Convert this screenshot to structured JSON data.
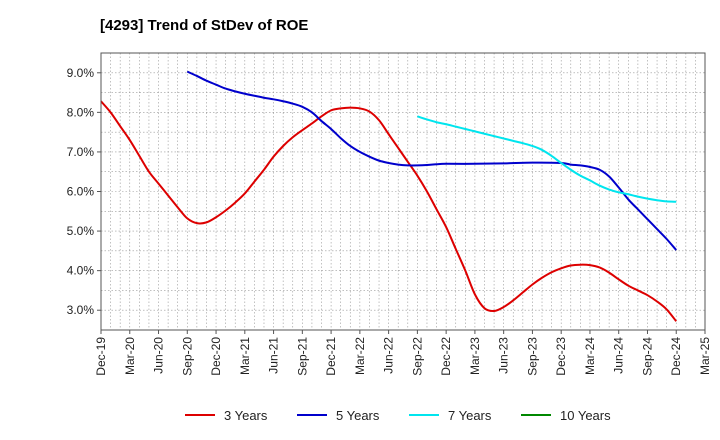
{
  "chart_data": {
    "type": "line",
    "title": "[4293]  Trend of StDev of ROE",
    "xlabel": "",
    "ylabel": "",
    "x_ticks": [
      "Dec-19",
      "Mar-20",
      "Jun-20",
      "Sep-20",
      "Dec-20",
      "Mar-21",
      "Jun-21",
      "Sep-21",
      "Dec-21",
      "Mar-22",
      "Jun-22",
      "Sep-22",
      "Dec-22",
      "Mar-23",
      "Jun-23",
      "Sep-23",
      "Dec-23",
      "Mar-24",
      "Jun-24",
      "Sep-24",
      "Dec-24",
      "Mar-25"
    ],
    "y_ticks": [
      3.0,
      4.0,
      5.0,
      6.0,
      7.0,
      8.0,
      9.0
    ],
    "y_tick_labels": [
      "3.0%",
      "4.0%",
      "5.0%",
      "6.0%",
      "7.0%",
      "8.0%",
      "9.0%"
    ],
    "ylim": [
      2.5,
      9.5
    ],
    "grid": true,
    "legend_position": "bottom",
    "series": [
      {
        "name": "3 Years",
        "color": "#dd0000",
        "points": [
          [
            "Dec-19",
            8.28
          ],
          [
            "Jan-20",
            8.0
          ],
          [
            "Feb-20",
            7.65
          ],
          [
            "Mar-20",
            7.3
          ],
          [
            "Apr-20",
            6.9
          ],
          [
            "May-20",
            6.5
          ],
          [
            "Jun-20",
            6.2
          ],
          [
            "Jul-20",
            5.9
          ],
          [
            "Aug-20",
            5.6
          ],
          [
            "Sep-20",
            5.32
          ],
          [
            "Oct-20",
            5.2
          ],
          [
            "Nov-20",
            5.22
          ],
          [
            "Dec-20",
            5.35
          ],
          [
            "Jan-21",
            5.52
          ],
          [
            "Feb-21",
            5.72
          ],
          [
            "Mar-21",
            5.95
          ],
          [
            "Apr-21",
            6.25
          ],
          [
            "May-21",
            6.55
          ],
          [
            "Jun-21",
            6.88
          ],
          [
            "Jul-21",
            7.15
          ],
          [
            "Aug-21",
            7.37
          ],
          [
            "Sep-21",
            7.55
          ],
          [
            "Oct-21",
            7.72
          ],
          [
            "Nov-21",
            7.9
          ],
          [
            "Dec-21",
            8.05
          ],
          [
            "Jan-22",
            8.1
          ],
          [
            "Feb-22",
            8.12
          ],
          [
            "Mar-22",
            8.1
          ],
          [
            "Apr-22",
            8.02
          ],
          [
            "May-22",
            7.8
          ],
          [
            "Jun-22",
            7.45
          ],
          [
            "Jul-22",
            7.1
          ],
          [
            "Aug-22",
            6.75
          ],
          [
            "Sep-22",
            6.4
          ],
          [
            "Oct-22",
            6.0
          ],
          [
            "Nov-22",
            5.55
          ],
          [
            "Dec-22",
            5.1
          ],
          [
            "Jan-23",
            4.55
          ],
          [
            "Feb-23",
            4.0
          ],
          [
            "Mar-23",
            3.4
          ],
          [
            "Apr-23",
            3.05
          ],
          [
            "May-23",
            2.98
          ],
          [
            "Jun-23",
            3.08
          ],
          [
            "Jul-23",
            3.25
          ],
          [
            "Aug-23",
            3.45
          ],
          [
            "Sep-23",
            3.65
          ],
          [
            "Oct-23",
            3.82
          ],
          [
            "Nov-23",
            3.96
          ],
          [
            "Dec-23",
            4.06
          ],
          [
            "Jan-24",
            4.13
          ],
          [
            "Feb-24",
            4.15
          ],
          [
            "Mar-24",
            4.14
          ],
          [
            "Apr-24",
            4.08
          ],
          [
            "May-24",
            3.95
          ],
          [
            "Jun-24",
            3.78
          ],
          [
            "Jul-24",
            3.62
          ],
          [
            "Aug-24",
            3.5
          ],
          [
            "Sep-24",
            3.38
          ],
          [
            "Oct-24",
            3.22
          ],
          [
            "Nov-24",
            3.02
          ],
          [
            "Dec-24",
            2.72
          ]
        ]
      },
      {
        "name": "5 Years",
        "color": "#0000cc",
        "points": [
          [
            "Sep-20",
            9.03
          ],
          [
            "Oct-20",
            8.92
          ],
          [
            "Nov-20",
            8.8
          ],
          [
            "Dec-20",
            8.7
          ],
          [
            "Jan-21",
            8.6
          ],
          [
            "Feb-21",
            8.53
          ],
          [
            "Mar-21",
            8.47
          ],
          [
            "Apr-21",
            8.42
          ],
          [
            "May-21",
            8.37
          ],
          [
            "Jun-21",
            8.33
          ],
          [
            "Jul-21",
            8.28
          ],
          [
            "Aug-21",
            8.22
          ],
          [
            "Sep-21",
            8.14
          ],
          [
            "Oct-21",
            8.0
          ],
          [
            "Nov-21",
            7.78
          ],
          [
            "Dec-21",
            7.58
          ],
          [
            "Jan-22",
            7.35
          ],
          [
            "Feb-22",
            7.15
          ],
          [
            "Mar-22",
            7.0
          ],
          [
            "Apr-22",
            6.88
          ],
          [
            "May-22",
            6.78
          ],
          [
            "Jun-22",
            6.72
          ],
          [
            "Jul-22",
            6.68
          ],
          [
            "Aug-22",
            6.66
          ],
          [
            "Sep-22",
            6.66
          ],
          [
            "Oct-22",
            6.67
          ],
          [
            "Nov-22",
            6.69
          ],
          [
            "Dec-22",
            6.7
          ],
          [
            "Mar-23",
            6.7
          ],
          [
            "Jun-23",
            6.71
          ],
          [
            "Sep-23",
            6.73
          ],
          [
            "Dec-23",
            6.72
          ],
          [
            "Jan-24",
            6.68
          ],
          [
            "Feb-24",
            6.66
          ],
          [
            "Mar-24",
            6.62
          ],
          [
            "Apr-24",
            6.55
          ],
          [
            "May-24",
            6.38
          ],
          [
            "Jun-24",
            6.1
          ],
          [
            "Jul-24",
            5.8
          ],
          [
            "Aug-24",
            5.55
          ],
          [
            "Sep-24",
            5.3
          ],
          [
            "Oct-24",
            5.05
          ],
          [
            "Nov-24",
            4.8
          ],
          [
            "Dec-24",
            4.52
          ]
        ]
      },
      {
        "name": "7 Years",
        "color": "#00e5ee",
        "points": [
          [
            "Sep-22",
            7.9
          ],
          [
            "Oct-22",
            7.82
          ],
          [
            "Nov-22",
            7.75
          ],
          [
            "Dec-22",
            7.7
          ],
          [
            "Jan-23",
            7.64
          ],
          [
            "Feb-23",
            7.58
          ],
          [
            "Mar-23",
            7.52
          ],
          [
            "Apr-23",
            7.46
          ],
          [
            "May-23",
            7.4
          ],
          [
            "Jun-23",
            7.34
          ],
          [
            "Jul-23",
            7.28
          ],
          [
            "Aug-23",
            7.22
          ],
          [
            "Sep-23",
            7.15
          ],
          [
            "Oct-23",
            7.05
          ],
          [
            "Nov-23",
            6.9
          ],
          [
            "Dec-23",
            6.72
          ],
          [
            "Jan-24",
            6.55
          ],
          [
            "Feb-24",
            6.4
          ],
          [
            "Mar-24",
            6.28
          ],
          [
            "Apr-24",
            6.15
          ],
          [
            "May-24",
            6.05
          ],
          [
            "Jun-24",
            5.98
          ],
          [
            "Jul-24",
            5.93
          ],
          [
            "Aug-24",
            5.87
          ],
          [
            "Sep-24",
            5.82
          ],
          [
            "Oct-24",
            5.78
          ],
          [
            "Nov-24",
            5.75
          ],
          [
            "Dec-24",
            5.74
          ]
        ]
      },
      {
        "name": "10 Years",
        "color": "#008800",
        "points": []
      }
    ]
  }
}
